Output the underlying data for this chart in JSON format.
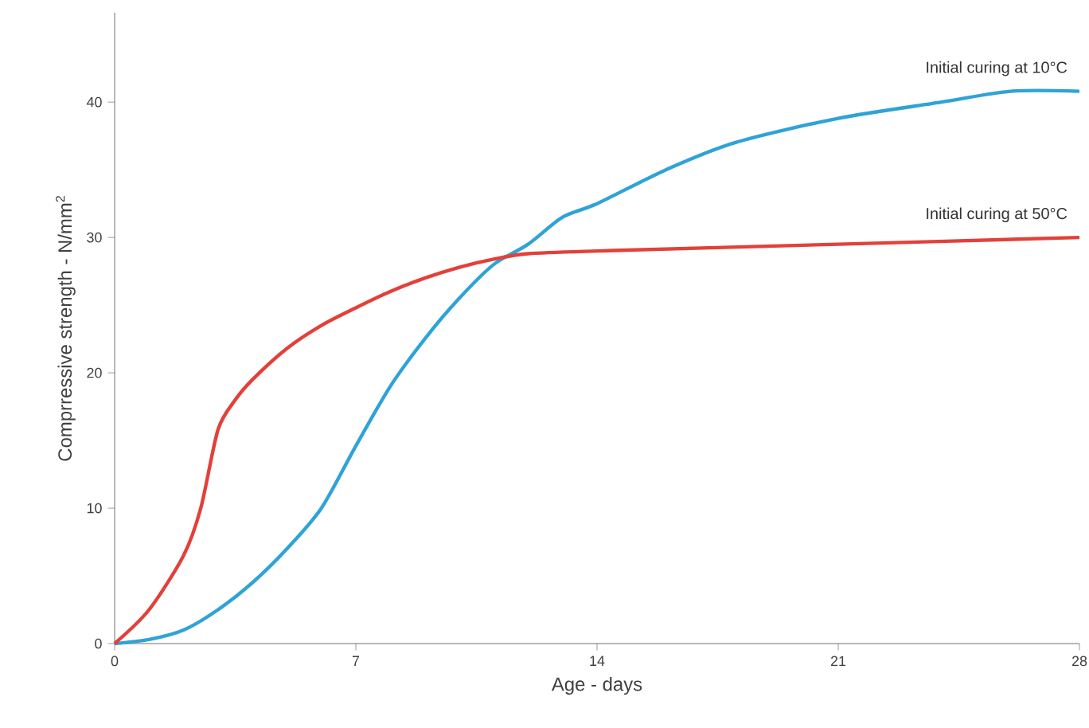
{
  "chart_data": {
    "type": "line",
    "xlabel": "Age - days",
    "ylabel": "Comprressive strength - N/mm$^{2}$",
    "xlim": [
      0,
      28
    ],
    "ylim": [
      0,
      46.6
    ],
    "xticks": [
      0,
      7,
      14,
      21,
      28
    ],
    "yticks": [
      0,
      10,
      20,
      30,
      40
    ],
    "grid": false,
    "legend": false,
    "marker": "none",
    "line_style": "solid",
    "series": [
      {
        "name": "Initial curing at 10°C",
        "color": "#2fa3d6",
        "x": [
          0,
          1,
          2,
          3,
          4,
          5,
          6,
          7,
          8,
          9,
          10,
          11,
          12,
          13,
          14,
          16,
          18,
          21,
          24,
          26,
          28
        ],
        "values": [
          0,
          0.3,
          1,
          2.5,
          4.5,
          7,
          10,
          14.6,
          19,
          22.5,
          25.5,
          28,
          29.5,
          31.5,
          32.5,
          35,
          37,
          38.8,
          40,
          40.8,
          40.8
        ]
      },
      {
        "name": "Initial curing at 50°C",
        "color": "#e3403a",
        "x": [
          0,
          1,
          2,
          2.5,
          3,
          3.5,
          4,
          5,
          6,
          7,
          8,
          9,
          10,
          11,
          12,
          14,
          21,
          28
        ],
        "values": [
          0,
          2.5,
          6.5,
          10,
          15.8,
          18,
          19.5,
          21.8,
          23.5,
          24.8,
          26,
          27,
          27.8,
          28.4,
          28.8,
          29,
          29.5,
          30
        ]
      }
    ]
  }
}
